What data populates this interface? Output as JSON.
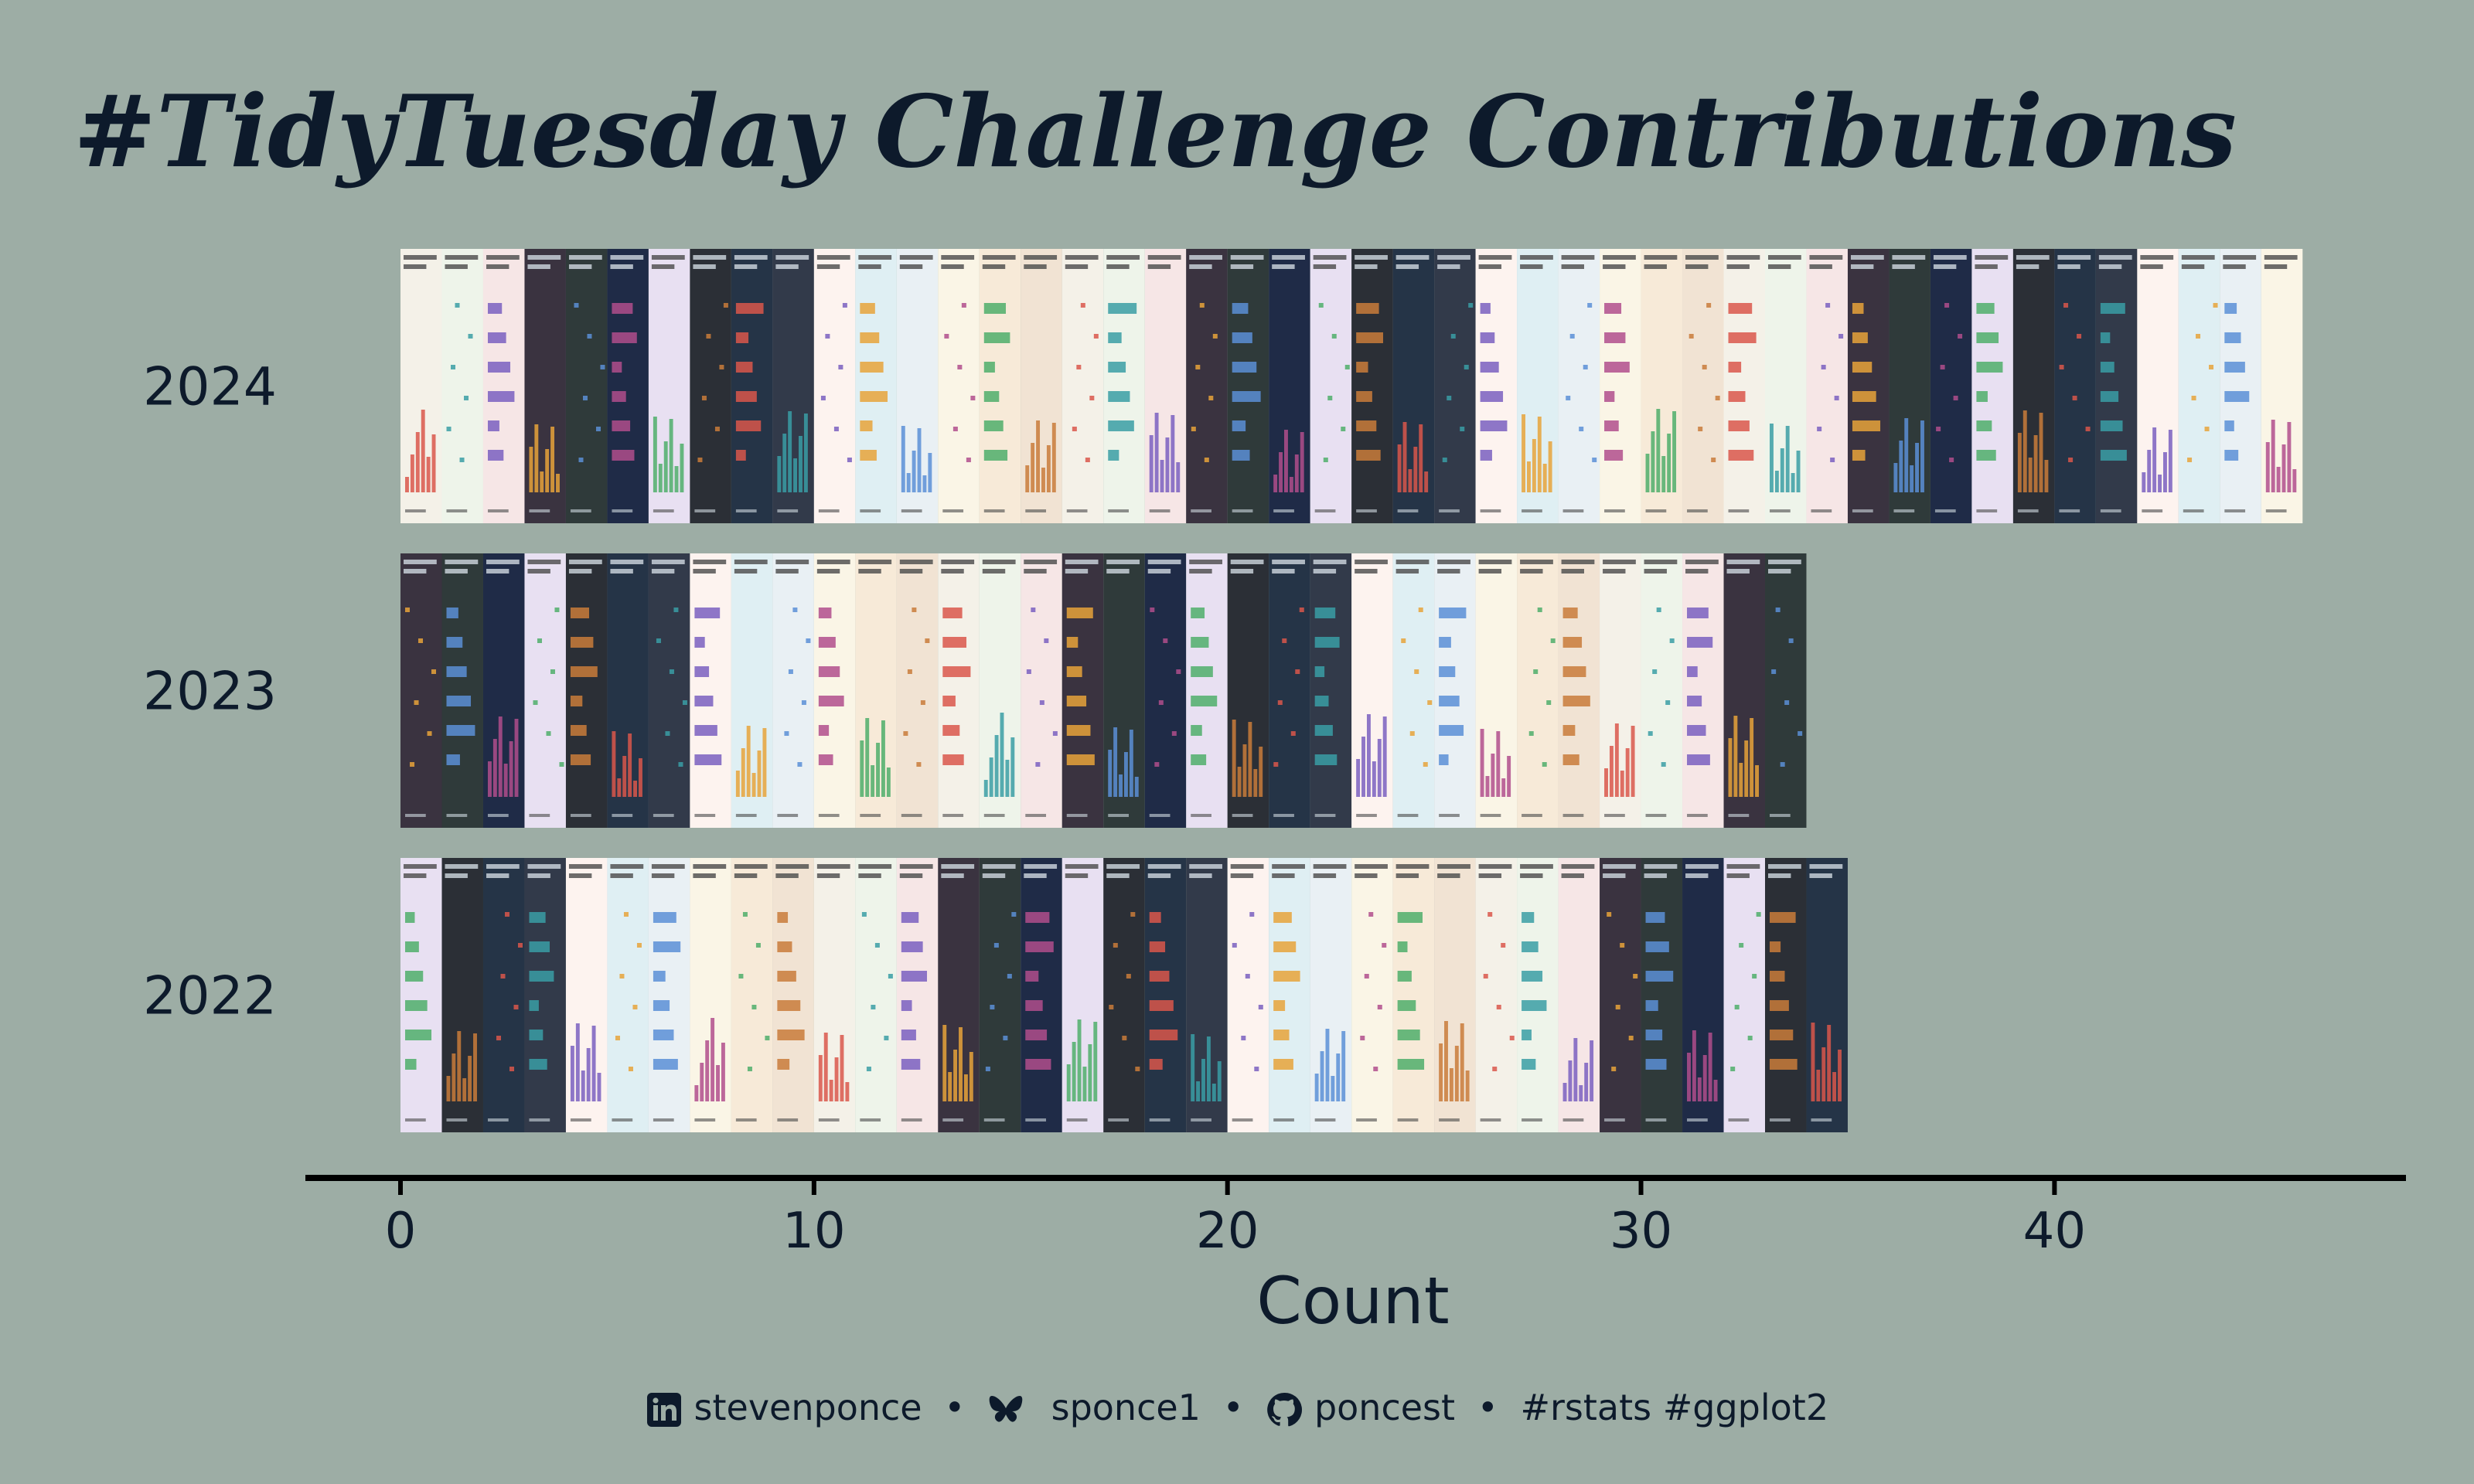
{
  "chart_data": {
    "type": "bar",
    "title": "#TidyTuesday Challenge Contributions",
    "xlabel": "Count",
    "ylabel": "",
    "categories": [
      "2024",
      "2023",
      "2022"
    ],
    "values": [
      46,
      34,
      35
    ],
    "xlim": [
      -2.3,
      48.5
    ],
    "xticks": [
      0,
      10,
      20,
      30,
      40
    ],
    "orientation": "horizontal",
    "grid": false,
    "colors": {
      "background": "#9dada5",
      "text": "#0d1a2b",
      "axis": "#000000"
    }
  },
  "caption": {
    "linkedin_icon": "linkedin-icon",
    "linkedin": "stevenponce",
    "bluesky_icon": "butterfly-icon",
    "bluesky": "sponce1",
    "github_icon": "github-icon",
    "github": "poncest",
    "separator": "•",
    "tags": "#rstats #ggplot2"
  }
}
